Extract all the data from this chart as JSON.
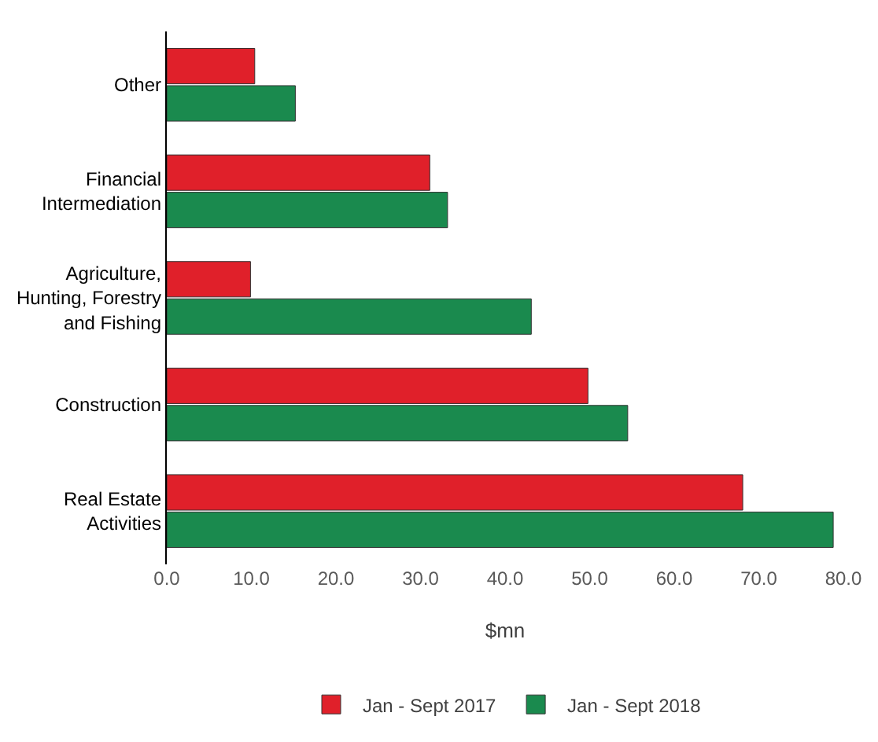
{
  "chart_data": {
    "type": "bar",
    "orientation": "horizontal",
    "xlabel": "$mn",
    "categories": [
      "Other",
      "Financial\nIntermediation",
      "Agriculture,\nHunting, Forestry\nand Fishing",
      "Construction",
      "Real Estate\nActivities"
    ],
    "series": [
      {
        "name": "Jan - Sept 2017",
        "color": "#e0202a",
        "values": [
          10.4,
          31.1,
          9.9,
          49.8,
          68.1
        ]
      },
      {
        "name": "Jan - Sept 2018",
        "color": "#1a8a4e",
        "values": [
          15.2,
          33.2,
          43.1,
          54.5,
          78.8
        ]
      }
    ],
    "xlim": [
      0,
      80
    ],
    "xticks": [
      {
        "value": 0,
        "label": "0.0"
      },
      {
        "value": 10,
        "label": "10.0"
      },
      {
        "value": 20,
        "label": "20.0"
      },
      {
        "value": 30,
        "label": "30.0"
      },
      {
        "value": 40,
        "label": "40.0"
      },
      {
        "value": 50,
        "label": "50.0"
      },
      {
        "value": 60,
        "label": "60.0"
      },
      {
        "value": 70,
        "label": "70.0"
      },
      {
        "value": 80,
        "label": "80.0"
      }
    ],
    "legend": "bottom"
  }
}
